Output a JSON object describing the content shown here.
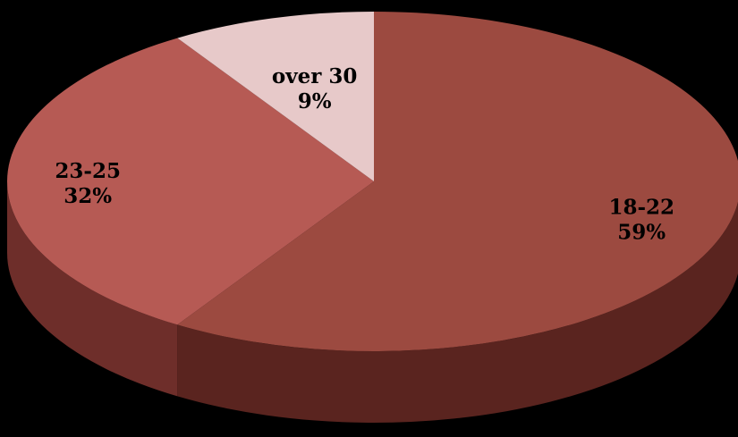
{
  "background": "#000000",
  "chart_data": {
    "type": "pie",
    "style": "3d",
    "title": "",
    "slices": [
      {
        "category": "18-22",
        "value": 59,
        "label": "59%",
        "color": "#9c4a40",
        "side_color": "#5a241f"
      },
      {
        "category": "23-25",
        "value": 32,
        "label": "32%",
        "color": "#b65a54",
        "side_color": "#6e2e2a"
      },
      {
        "category": "over 30",
        "value": 9,
        "label": "9%",
        "color": "#e7c9c9",
        "side_color": "#a98a8a"
      }
    ]
  }
}
